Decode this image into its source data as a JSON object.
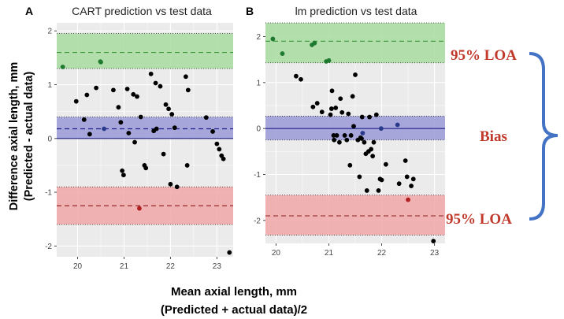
{
  "figure": {
    "y_axis_label_line1": "Difference axial length, mm",
    "y_axis_label_line2": "(Predicted - actual data)",
    "x_axis_label_line1": "Mean axial length, mm",
    "x_axis_label_line2": "(Predicted + actual data)/2"
  },
  "annotations": {
    "upper_loa": "95% LOA",
    "bias": "Bias",
    "lower_loa": "95% LOA",
    "color": "#c0392b",
    "bracket_color": "#4472c4"
  },
  "colors": {
    "panel_bg": "#ebebeb",
    "grid": "#ffffff",
    "upper_band": "#a8dca0",
    "bias_band": "#9a9ad8",
    "lower_band": "#f0a7a7",
    "upper_line": "#3a9a3a",
    "bias_line": "#20208a",
    "lower_line": "#8b1a1a",
    "point": "#000000",
    "point_green": "#1e7a2e",
    "point_blue": "#2a3a8a",
    "point_red": "#b02020"
  },
  "chart_data": [
    {
      "type": "scatter",
      "panel_letter": "A",
      "title": "CART prediction vs test data",
      "xlabel": "Mean axial length, mm",
      "ylabel": "Difference axial length, mm",
      "xlim": [
        19.55,
        23.35
      ],
      "ylim": [
        -2.2,
        2.15
      ],
      "xticks": [
        20,
        21,
        22,
        23
      ],
      "yticks": [
        -2,
        -1,
        0,
        1,
        2
      ],
      "bias": 0.18,
      "upper_loa": 1.6,
      "lower_loa": -1.25,
      "bias_band": [
        0.0,
        0.4
      ],
      "upper_band": [
        1.3,
        1.95
      ],
      "lower_band": [
        -1.6,
        -0.9
      ],
      "points": [
        {
          "x": 19.68,
          "y": 1.33,
          "g": "green"
        },
        {
          "x": 20.49,
          "y": 1.43,
          "g": "green"
        },
        {
          "x": 20.5,
          "y": 1.42,
          "g": "green"
        },
        {
          "x": 19.97,
          "y": 0.69,
          "g": "black"
        },
        {
          "x": 20.14,
          "y": 0.35,
          "g": "black"
        },
        {
          "x": 20.2,
          "y": 0.81,
          "g": "black"
        },
        {
          "x": 20.26,
          "y": 0.08,
          "g": "black"
        },
        {
          "x": 20.4,
          "y": 0.94,
          "g": "black"
        },
        {
          "x": 20.57,
          "y": 0.18,
          "g": "blue"
        },
        {
          "x": 20.77,
          "y": 0.9,
          "g": "black"
        },
        {
          "x": 20.88,
          "y": 0.58,
          "g": "black"
        },
        {
          "x": 20.93,
          "y": 0.3,
          "g": "black"
        },
        {
          "x": 20.96,
          "y": -0.6,
          "g": "black"
        },
        {
          "x": 20.99,
          "y": -0.68,
          "g": "black"
        },
        {
          "x": 21.07,
          "y": 0.92,
          "g": "black"
        },
        {
          "x": 21.1,
          "y": 0.1,
          "g": "black"
        },
        {
          "x": 21.2,
          "y": 0.82,
          "g": "black"
        },
        {
          "x": 21.23,
          "y": -0.07,
          "g": "black"
        },
        {
          "x": 21.28,
          "y": 0.78,
          "g": "black"
        },
        {
          "x": 21.33,
          "y": -1.3,
          "g": "red"
        },
        {
          "x": 21.36,
          "y": 0.4,
          "g": "black"
        },
        {
          "x": 21.44,
          "y": -0.5,
          "g": "black"
        },
        {
          "x": 21.47,
          "y": -0.55,
          "g": "black"
        },
        {
          "x": 21.58,
          "y": 1.2,
          "g": "black"
        },
        {
          "x": 21.64,
          "y": 0.14,
          "g": "black"
        },
        {
          "x": 21.68,
          "y": 1.03,
          "g": "black"
        },
        {
          "x": 21.7,
          "y": 0.18,
          "g": "black"
        },
        {
          "x": 21.78,
          "y": 0.97,
          "g": "black"
        },
        {
          "x": 21.85,
          "y": -0.29,
          "g": "black"
        },
        {
          "x": 21.9,
          "y": 0.63,
          "g": "black"
        },
        {
          "x": 21.96,
          "y": 0.55,
          "g": "black"
        },
        {
          "x": 22.0,
          "y": -0.85,
          "g": "black"
        },
        {
          "x": 22.03,
          "y": 0.45,
          "g": "black"
        },
        {
          "x": 22.09,
          "y": 0.2,
          "g": "black"
        },
        {
          "x": 22.14,
          "y": -0.9,
          "g": "black"
        },
        {
          "x": 22.33,
          "y": 1.15,
          "g": "black"
        },
        {
          "x": 22.36,
          "y": -0.5,
          "g": "black"
        },
        {
          "x": 22.38,
          "y": 0.9,
          "g": "black"
        },
        {
          "x": 22.77,
          "y": 0.39,
          "g": "black"
        },
        {
          "x": 22.91,
          "y": 0.13,
          "g": "black"
        },
        {
          "x": 23.0,
          "y": -0.1,
          "g": "black"
        },
        {
          "x": 23.05,
          "y": -0.2,
          "g": "black"
        },
        {
          "x": 23.1,
          "y": -0.32,
          "g": "black"
        },
        {
          "x": 23.14,
          "y": -0.38,
          "g": "black"
        },
        {
          "x": 23.27,
          "y": -2.12,
          "g": "black"
        }
      ]
    },
    {
      "type": "scatter",
      "panel_letter": "B",
      "title": "lm prediction vs test data",
      "xlabel": "Mean axial length, mm",
      "ylabel": "Difference axial length, mm",
      "xlim": [
        19.8,
        23.2
      ],
      "ylim": [
        -2.5,
        2.3
      ],
      "xticks": [
        20,
        21,
        22,
        23
      ],
      "yticks": [
        -2,
        -1,
        0,
        1,
        2
      ],
      "bias": 0.0,
      "upper_loa": 1.9,
      "lower_loa": -1.9,
      "bias_band": [
        -0.25,
        0.27
      ],
      "upper_band": [
        1.43,
        2.3
      ],
      "lower_band": [
        -2.32,
        -1.45
      ],
      "points": [
        {
          "x": 19.94,
          "y": 1.95,
          "g": "green"
        },
        {
          "x": 20.12,
          "y": 1.63,
          "g": "green"
        },
        {
          "x": 20.68,
          "y": 1.82,
          "g": "green"
        },
        {
          "x": 20.73,
          "y": 1.86,
          "g": "green"
        },
        {
          "x": 20.95,
          "y": 1.46,
          "g": "green"
        },
        {
          "x": 21.0,
          "y": 1.48,
          "g": "green"
        },
        {
          "x": 20.38,
          "y": 1.14,
          "g": "black"
        },
        {
          "x": 20.47,
          "y": 1.07,
          "g": "black"
        },
        {
          "x": 20.7,
          "y": 0.47,
          "g": "black"
        },
        {
          "x": 20.78,
          "y": 0.55,
          "g": "black"
        },
        {
          "x": 20.87,
          "y": 0.36,
          "g": "black"
        },
        {
          "x": 21.03,
          "y": 0.3,
          "g": "black"
        },
        {
          "x": 21.05,
          "y": 0.43,
          "g": "black"
        },
        {
          "x": 21.06,
          "y": 0.82,
          "g": "black"
        },
        {
          "x": 21.09,
          "y": -0.15,
          "g": "black"
        },
        {
          "x": 21.1,
          "y": -0.25,
          "g": "black"
        },
        {
          "x": 21.13,
          "y": 0.45,
          "g": "black"
        },
        {
          "x": 21.15,
          "y": -0.15,
          "g": "black"
        },
        {
          "x": 21.2,
          "y": -0.3,
          "g": "black"
        },
        {
          "x": 21.22,
          "y": 0.65,
          "g": "black"
        },
        {
          "x": 21.25,
          "y": 0.35,
          "g": "black"
        },
        {
          "x": 21.3,
          "y": -0.15,
          "g": "black"
        },
        {
          "x": 21.34,
          "y": -0.25,
          "g": "black"
        },
        {
          "x": 21.37,
          "y": 0.32,
          "g": "black"
        },
        {
          "x": 21.4,
          "y": -0.8,
          "g": "black"
        },
        {
          "x": 21.42,
          "y": -0.15,
          "g": "black"
        },
        {
          "x": 21.45,
          "y": 0.7,
          "g": "black"
        },
        {
          "x": 21.47,
          "y": 0.05,
          "g": "black"
        },
        {
          "x": 21.5,
          "y": 1.17,
          "g": "black"
        },
        {
          "x": 21.55,
          "y": -0.25,
          "g": "black"
        },
        {
          "x": 21.58,
          "y": -1.05,
          "g": "black"
        },
        {
          "x": 21.6,
          "y": -0.2,
          "g": "black"
        },
        {
          "x": 21.62,
          "y": -0.22,
          "g": "black"
        },
        {
          "x": 21.63,
          "y": 0.25,
          "g": "black"
        },
        {
          "x": 21.64,
          "y": -0.1,
          "g": "blue"
        },
        {
          "x": 21.67,
          "y": -0.3,
          "g": "black"
        },
        {
          "x": 21.7,
          "y": -0.55,
          "g": "black"
        },
        {
          "x": 21.72,
          "y": -1.35,
          "g": "black"
        },
        {
          "x": 21.75,
          "y": -0.5,
          "g": "black"
        },
        {
          "x": 21.77,
          "y": 0.25,
          "g": "black"
        },
        {
          "x": 21.8,
          "y": -0.45,
          "g": "black"
        },
        {
          "x": 21.83,
          "y": -0.6,
          "g": "black"
        },
        {
          "x": 21.85,
          "y": -0.3,
          "g": "black"
        },
        {
          "x": 21.9,
          "y": 0.3,
          "g": "black"
        },
        {
          "x": 21.94,
          "y": -1.35,
          "g": "black"
        },
        {
          "x": 21.97,
          "y": -1.1,
          "g": "black"
        },
        {
          "x": 21.99,
          "y": 0.0,
          "g": "blue"
        },
        {
          "x": 22.0,
          "y": -1.12,
          "g": "black"
        },
        {
          "x": 22.08,
          "y": -0.78,
          "g": "black"
        },
        {
          "x": 22.3,
          "y": 0.08,
          "g": "blue"
        },
        {
          "x": 22.33,
          "y": -1.2,
          "g": "black"
        },
        {
          "x": 22.45,
          "y": -0.7,
          "g": "black"
        },
        {
          "x": 22.48,
          "y": -1.05,
          "g": "black"
        },
        {
          "x": 22.5,
          "y": -1.55,
          "g": "red"
        },
        {
          "x": 22.56,
          "y": -1.25,
          "g": "black"
        },
        {
          "x": 22.6,
          "y": -1.1,
          "g": "black"
        },
        {
          "x": 22.98,
          "y": -2.45,
          "g": "black"
        }
      ]
    }
  ]
}
